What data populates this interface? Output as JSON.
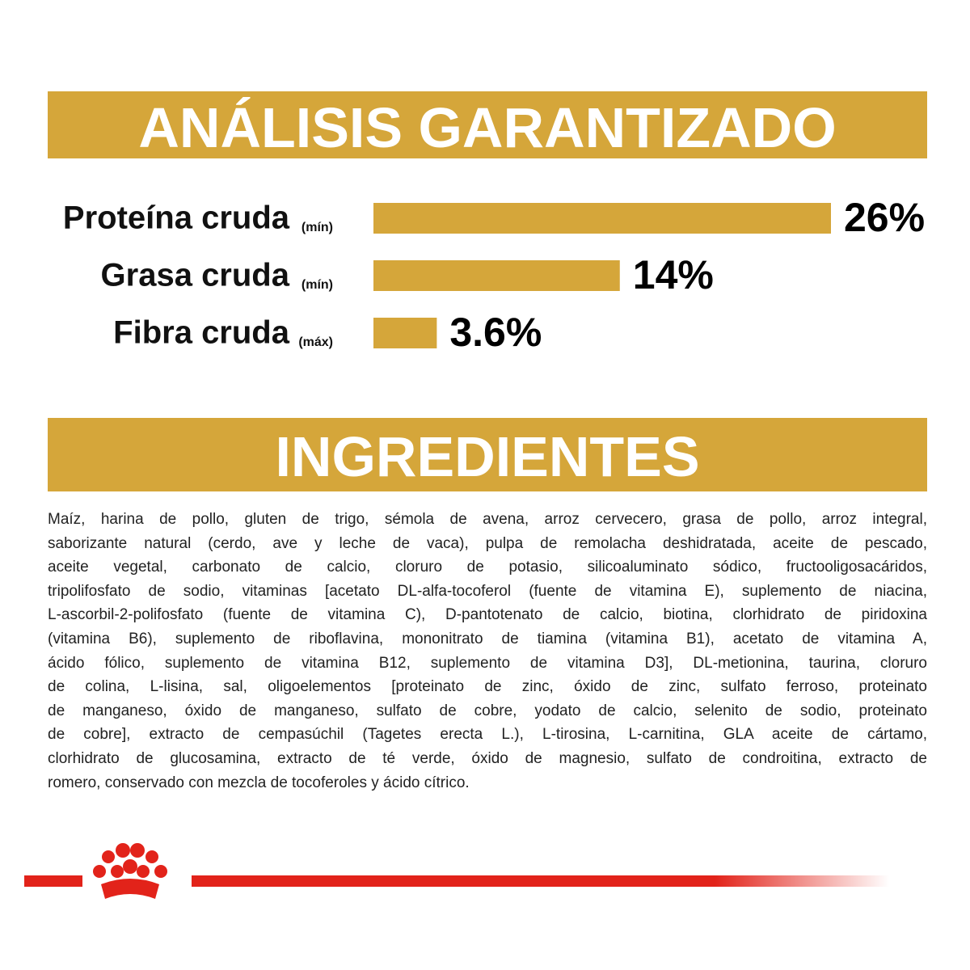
{
  "analysis_title": "ANÁLISIS GARANTIZADO",
  "chart_data": {
    "type": "bar",
    "orientation": "horizontal",
    "categories": [
      "Proteína cruda",
      "Grasa cruda",
      "Fibra cruda"
    ],
    "qualifiers": [
      "(mín)",
      "(mín)",
      "(máx)"
    ],
    "values": [
      26,
      14,
      3.6
    ],
    "value_labels": [
      "26%",
      "14%",
      "3.6%"
    ],
    "color": "#d5a63a"
  },
  "ingredients_title": "INGREDIENTES",
  "ingredients": {
    "lines": [
      "Maíz, harina de pollo, gluten de trigo, sémola de avena, arroz cervecero, grasa de pollo, arroz integral,",
      "saborizante natural (cerdo, ave y leche de vaca), pulpa de remolacha deshidratada, aceite de pescado,",
      "aceite vegetal, carbonato de calcio, cloruro de potasio, silicoaluminato sódico, fructooligosacáridos,",
      "tripolifosfato de sodio, vitaminas [acetato DL-alfa-tocoferol (fuente de vitamina E), suplemento de niacina,",
      "L-ascorbil-2-polifosfato (fuente de vitamina C), D-pantotenato de calcio, biotina, clorhidrato de piridoxina",
      "(vitamina B6), suplemento de riboflavina, mononitrato de tiamina (vitamina B1), acetato de vitamina A,",
      "ácido fólico, suplemento de vitamina B12, suplemento de vitamina D3], DL-metionina, taurina, cloruro",
      "de colina, L-lisina, sal, oligoelementos [proteinato de zinc, óxido de zinc, sulfato ferroso, proteinato",
      "de manganeso, óxido de manganeso, sulfato de cobre, yodato de calcio, selenito de sodio, proteinato",
      "de cobre], extracto de cempasúchil (Tagetes erecta L.), L-tirosina, L-carnitina, GLA aceite de cártamo,",
      "clorhidrato de glucosamina, extracto de té verde, óxido de magnesio, sulfato de condroitina, extracto de",
      "romero, conservado con mezcla de tocoferoles y ácido cítrico."
    ]
  }
}
